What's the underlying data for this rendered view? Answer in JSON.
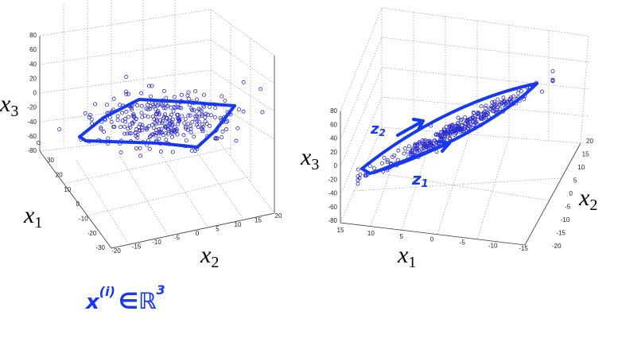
{
  "left_plot": {
    "x3_label": [
      "x",
      "3"
    ],
    "x1_label": [
      "x",
      "1"
    ],
    "x2_label": [
      "x",
      "2"
    ],
    "x3_ticks": [
      "80",
      "60",
      "40",
      "20",
      "0",
      "-20",
      "-40",
      "-60",
      "-80"
    ],
    "x1_ticks": [
      "30",
      "20",
      "10",
      "0",
      "-10",
      "-20",
      "-30"
    ],
    "x2_ticks": [
      "-20",
      "-15",
      "-10",
      "-5",
      "0",
      "5",
      "10",
      "15",
      "20"
    ],
    "annotation": [
      "x",
      "(i)",
      "∈ℝ",
      "3"
    ]
  },
  "right_plot": {
    "x3_label": [
      "x",
      "3"
    ],
    "x1_label": [
      "x",
      "1"
    ],
    "x2_label": [
      "x",
      "2"
    ],
    "x3_ticks": [
      "80",
      "60",
      "40",
      "20",
      "0",
      "-20",
      "-40",
      "-60",
      "-80"
    ],
    "x1_ticks": [
      "15",
      "10",
      "5",
      "0",
      "-5",
      "-10",
      "-15"
    ],
    "x2_ticks": [
      "20",
      "15",
      "10",
      "5",
      "0",
      "-5",
      "-10",
      "-15",
      "-20"
    ],
    "z1_label": [
      "z",
      "1"
    ],
    "z2_label": [
      "z",
      "2"
    ]
  }
}
